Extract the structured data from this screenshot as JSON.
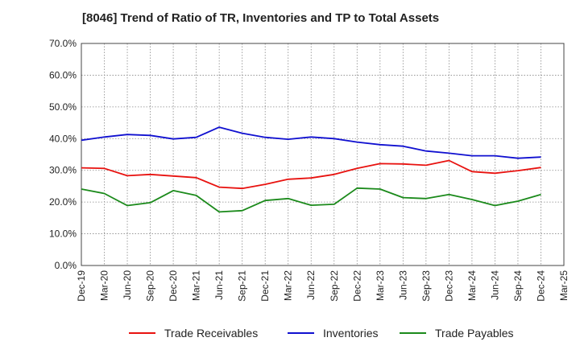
{
  "chart_data": {
    "type": "line",
    "title": "[8046]  Trend of Ratio of TR, Inventories and TP to Total Assets",
    "xlabel": "",
    "ylabel": "",
    "x": [
      "Dec-19",
      "Mar-20",
      "Jun-20",
      "Sep-20",
      "Dec-20",
      "Mar-21",
      "Jun-21",
      "Sep-21",
      "Dec-21",
      "Mar-22",
      "Jun-22",
      "Sep-22",
      "Dec-22",
      "Mar-23",
      "Jun-23",
      "Sep-23",
      "Dec-23",
      "Mar-24",
      "Jun-24",
      "Sep-24",
      "Dec-24",
      "Mar-25"
    ],
    "ylim": [
      0,
      70
    ],
    "yticks": [
      "0.0%",
      "10.0%",
      "20.0%",
      "30.0%",
      "40.0%",
      "50.0%",
      "60.0%",
      "70.0%"
    ],
    "grid": true,
    "legend_position": "bottom",
    "series": [
      {
        "name": "Trade Receivables",
        "color": "#e8120f",
        "values": [
          30.8,
          30.6,
          28.3,
          28.7,
          28.2,
          27.7,
          24.7,
          24.3,
          25.6,
          27.2,
          27.6,
          28.7,
          30.6,
          32.1,
          32.0,
          31.6,
          33.1,
          29.6,
          29.1,
          29.9,
          30.9,
          null
        ]
      },
      {
        "name": "Inventories",
        "color": "#1010d0",
        "values": [
          39.5,
          40.5,
          41.3,
          41.0,
          39.9,
          40.4,
          43.6,
          41.7,
          40.4,
          39.8,
          40.5,
          40.0,
          38.9,
          38.1,
          37.6,
          36.1,
          35.4,
          34.6,
          34.6,
          33.8,
          34.2,
          null
        ]
      },
      {
        "name": "Trade Payables",
        "color": "#1b8a1b",
        "values": [
          24.1,
          22.7,
          18.9,
          19.8,
          23.6,
          22.1,
          16.9,
          17.3,
          20.5,
          21.1,
          19.0,
          19.3,
          24.4,
          24.1,
          21.4,
          21.1,
          22.4,
          20.8,
          18.9,
          20.3,
          22.4,
          null
        ]
      }
    ]
  }
}
